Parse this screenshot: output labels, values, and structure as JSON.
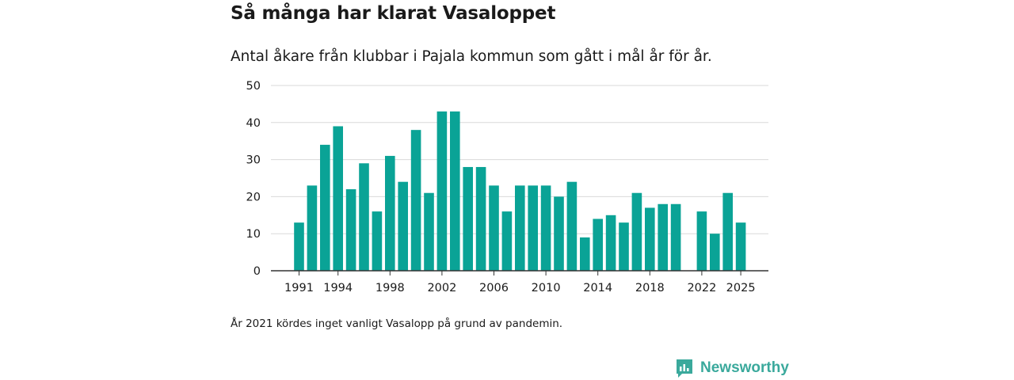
{
  "title": "Så många har klarat Vasaloppet",
  "subtitle": "Antal åkare från klubbar i Pajala kommun som gått i mål år för år.",
  "note": "År 2021 kördes inget vanligt Vasalopp på grund av pandemin.",
  "brand": {
    "name": "Newsworthy",
    "icon": "newsworthy-logo-icon",
    "color": "#3aa99c"
  },
  "chart_data": {
    "type": "bar",
    "title": "Så många har klarat Vasaloppet",
    "xlabel": "",
    "ylabel": "",
    "bar_color": "#0aa396",
    "ylim": [
      0,
      50
    ],
    "yticks": [
      0,
      10,
      20,
      30,
      40,
      50
    ],
    "xtick_labels": [
      1991,
      1994,
      1998,
      2002,
      2006,
      2010,
      2014,
      2018,
      2022,
      2025
    ],
    "grid": true,
    "categories": [
      1991,
      1992,
      1993,
      1994,
      1995,
      1996,
      1997,
      1998,
      1999,
      2000,
      2001,
      2002,
      2003,
      2004,
      2005,
      2006,
      2007,
      2008,
      2009,
      2010,
      2011,
      2012,
      2013,
      2014,
      2015,
      2016,
      2017,
      2018,
      2019,
      2020,
      2021,
      2022,
      2023,
      2024,
      2025
    ],
    "values": [
      13,
      23,
      34,
      39,
      22,
      29,
      16,
      31,
      24,
      38,
      21,
      43,
      43,
      28,
      28,
      23,
      16,
      23,
      23,
      23,
      20,
      24,
      9,
      14,
      15,
      13,
      21,
      17,
      18,
      18,
      null,
      16,
      10,
      21,
      13
    ]
  }
}
